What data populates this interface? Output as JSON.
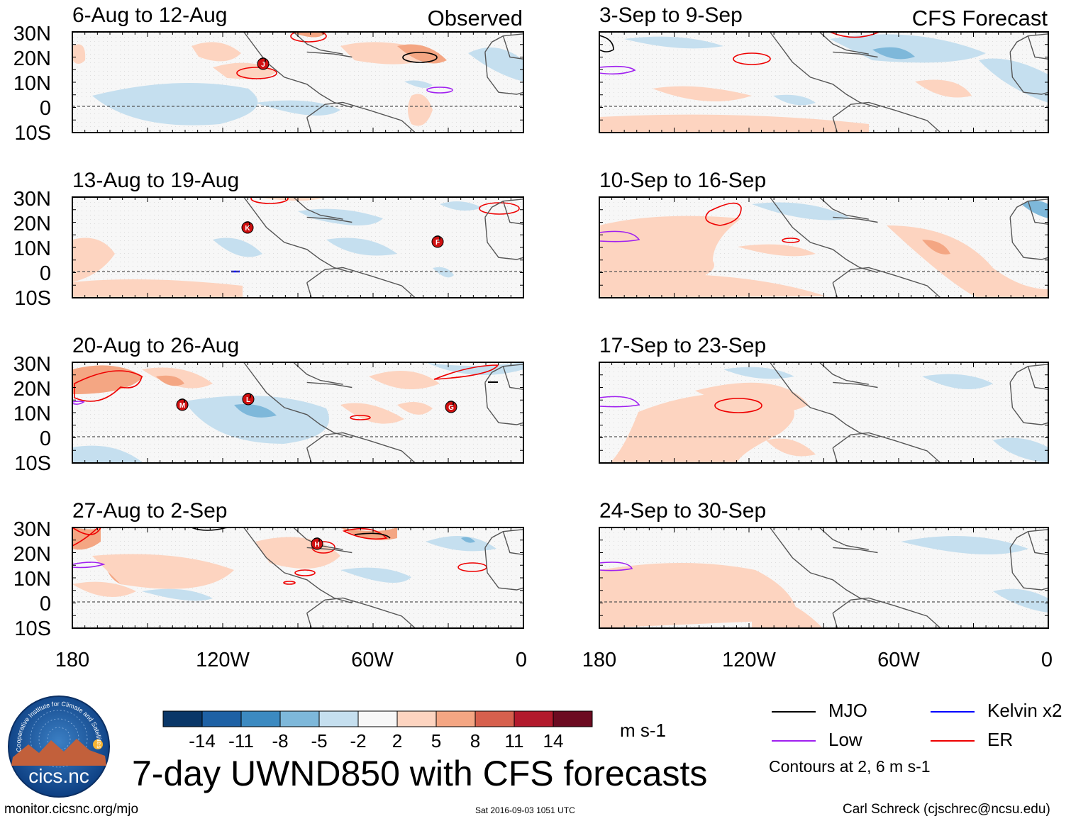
{
  "axes": {
    "lat_labels": [
      "30N",
      "20N",
      "10N",
      "0",
      "10S"
    ],
    "lon_labels": [
      "180",
      "120W",
      "60W",
      "0"
    ]
  },
  "column_labels": {
    "observed": "Observed",
    "forecast": "CFS Forecast"
  },
  "panels": [
    {
      "name": "panel-observed-1",
      "period": "6-Aug to 12-Aug",
      "column": "observed"
    },
    {
      "name": "panel-observed-2",
      "period": "13-Aug to 19-Aug",
      "column": "observed"
    },
    {
      "name": "panel-observed-3",
      "period": "20-Aug to 26-Aug",
      "column": "observed"
    },
    {
      "name": "panel-observed-4",
      "period": "27-Aug to 2-Sep",
      "column": "observed"
    },
    {
      "name": "panel-forecast-1",
      "period": "3-Sep to 9-Sep",
      "column": "forecast"
    },
    {
      "name": "panel-forecast-2",
      "period": "10-Sep to 16-Sep",
      "column": "forecast"
    },
    {
      "name": "panel-forecast-3",
      "period": "17-Sep to 23-Sep",
      "column": "forecast"
    },
    {
      "name": "panel-forecast-4",
      "period": "24-Sep to 30-Sep",
      "column": "forecast"
    }
  ],
  "colorbar": {
    "colors": [
      "#0a3768",
      "#1e61a5",
      "#3c8ac1",
      "#7eb8da",
      "#c5dfef",
      "#f7f7f7",
      "#fdd4c0",
      "#f4a683",
      "#d6604d",
      "#b21a2c",
      "#6c0b21"
    ],
    "labels": [
      "-14",
      "-11",
      "-8",
      "-5",
      "-2",
      "2",
      "5",
      "8",
      "11",
      "14"
    ],
    "units": "m s-1"
  },
  "legend": {
    "items": [
      {
        "label": "MJO",
        "color": "#000000"
      },
      {
        "label": "Kelvin x2",
        "color": "#0000ff"
      },
      {
        "label": "Low",
        "color": "#a020f0"
      },
      {
        "label": "ER",
        "color": "#ee0000"
      }
    ],
    "contour_note": "Contours at 2, 6 m s-1"
  },
  "storm_markers": [
    {
      "letter": "J",
      "panel": 0
    },
    {
      "letter": "K",
      "panel": 1
    },
    {
      "letter": "F",
      "panel": 1
    },
    {
      "letter": "M",
      "panel": 2
    },
    {
      "letter": "L",
      "panel": 2
    },
    {
      "letter": "G",
      "panel": 2
    },
    {
      "letter": "H",
      "panel": 3
    }
  ],
  "title": "7-day UWND850 with CFS forecasts",
  "logo": {
    "text": "cics.nc",
    "ring_text": "Cooperative Institute for Climate and Satellites"
  },
  "footer": {
    "left": "monitor.cicsnc.org/mjo",
    "center": "Sat 2016-09-03 1051 UTC",
    "right": "Carl Schreck (cjschrec@ncsu.edu)"
  }
}
